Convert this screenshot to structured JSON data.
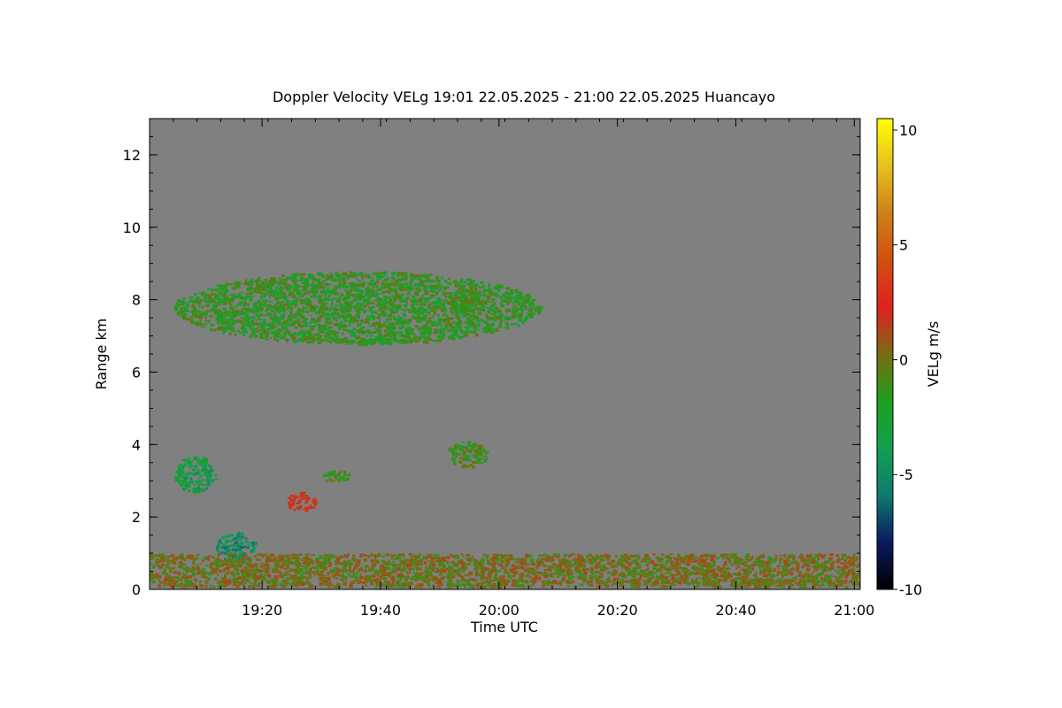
{
  "chart_data": {
    "type": "heatmap",
    "title": "Doppler Velocity VELg   19:01 22.05.2025 - 21:00 22.05.2025 Huancayo",
    "xlabel": "Time UTC",
    "ylabel": "Range km",
    "colorbar_label": "VELg m/s",
    "xlim": [
      "19:01",
      "21:01"
    ],
    "ylim": [
      0,
      13
    ],
    "x_ticks": [
      "19:20",
      "19:40",
      "20:00",
      "20:20",
      "20:40",
      "21:00"
    ],
    "y_ticks": [
      "0",
      "2",
      "4",
      "6",
      "8",
      "10",
      "12"
    ],
    "colorbar_range": [
      -10,
      10.5
    ],
    "colorbar_ticks": [
      "-10",
      "-5",
      "0",
      "5",
      "10"
    ],
    "background_color": "#808080",
    "colormap": [
      "#000000",
      "#0a1a60",
      "#0e7a70",
      "#12a04e",
      "#1ca01e",
      "#7a6a10",
      "#e02020",
      "#d05010",
      "#d08018",
      "#e8c020",
      "#ffff00"
    ],
    "features": [
      {
        "name": "cloud layer",
        "t_start": "19:05",
        "t_end": "20:07",
        "range_min_km": 6.8,
        "range_max_km": 8.8,
        "velocity_ms": -1.5
      },
      {
        "name": "cloud patch",
        "t_start": "19:51",
        "t_end": "19:57",
        "range_min_km": 7.7,
        "range_max_km": 8.3,
        "velocity_ms": -1.0
      },
      {
        "name": "cloud patch",
        "t_start": "19:51",
        "t_end": "19:58",
        "range_min_km": 3.4,
        "range_max_km": 4.1,
        "velocity_ms": -1.2
      },
      {
        "name": "patch",
        "t_start": "19:05",
        "t_end": "19:12",
        "range_min_km": 2.7,
        "range_max_km": 3.7,
        "velocity_ms": -3.5
      },
      {
        "name": "patch",
        "t_start": "19:24",
        "t_end": "19:29",
        "range_min_km": 2.2,
        "range_max_km": 2.7,
        "velocity_ms": 2.5
      },
      {
        "name": "patch",
        "t_start": "19:30",
        "t_end": "19:35",
        "range_min_km": 3.0,
        "range_max_km": 3.3,
        "velocity_ms": -1.0
      },
      {
        "name": "low-level return",
        "t_start": "19:12",
        "t_end": "19:19",
        "range_min_km": 0.8,
        "range_max_km": 1.6,
        "velocity_ms": -5.0
      },
      {
        "name": "boundary layer",
        "t_start": "19:01",
        "t_end": "21:01",
        "range_min_km": 0.1,
        "range_max_km": 1.0,
        "velocity_ms": 0.0
      },
      {
        "name": "near-surface band",
        "t_start": "20:20",
        "t_end": "21:01",
        "range_min_km": 0.2,
        "range_max_km": 0.3,
        "velocity_ms": 0.0
      }
    ]
  }
}
